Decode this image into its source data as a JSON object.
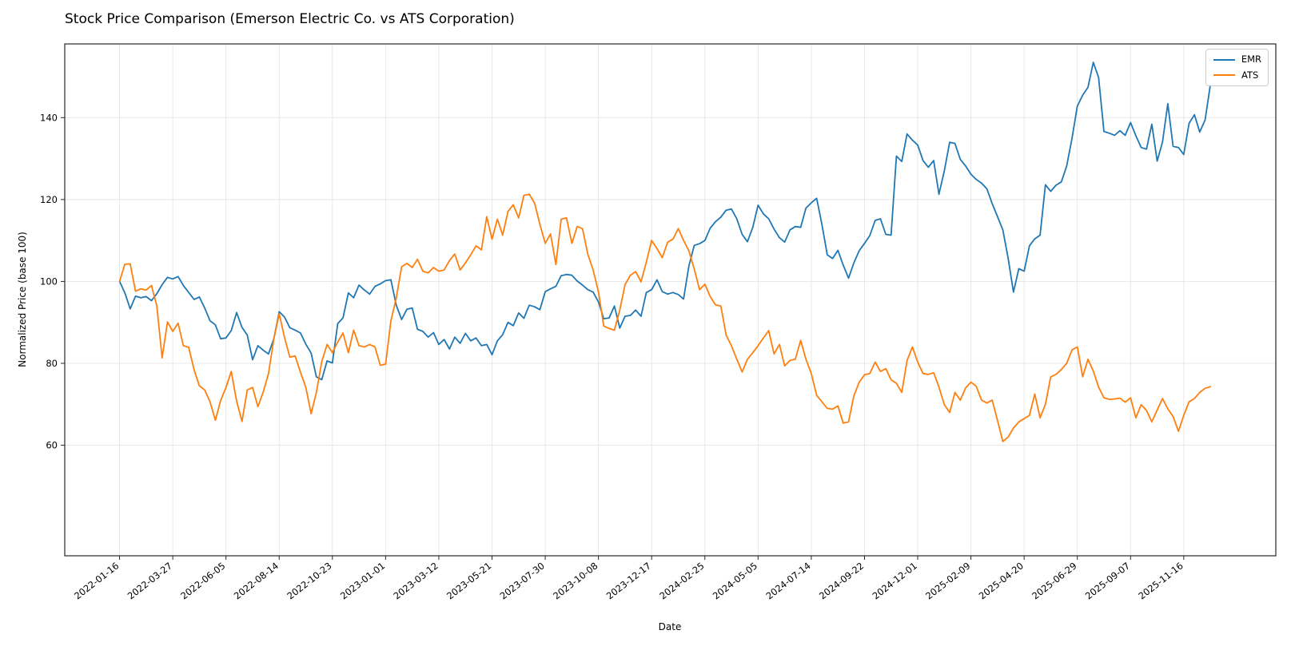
{
  "window_title": "Stock Price Comparison (Emerson Electric Co. vs ATS Corporation)",
  "chart_data": {
    "type": "line",
    "title": "Stock Price Comparison (Emerson Electric Co. vs ATS Corporation)",
    "xlabel": "Date",
    "ylabel": "Normalized Price (base 100)",
    "grid": true,
    "legend_position": "upper right",
    "background": "#ffffff",
    "grid_color": "#e5e5e5",
    "spine_color": "#262626",
    "tick_label_color": "#000000",
    "x_tick_rotation_deg": 38,
    "ylim": [
      33,
      158
    ],
    "y_ticks": [
      60,
      80,
      100,
      120,
      140
    ],
    "xlim_weeks": [
      -10.3,
      217.3
    ],
    "x_tick_weeks": [
      0,
      10,
      20,
      30,
      40,
      50,
      60,
      70,
      80,
      90,
      100,
      110,
      120,
      130,
      140,
      150,
      160,
      170,
      180,
      190,
      200
    ],
    "x_tick_labels": [
      "2022-01-16",
      "2022-03-27",
      "2022-06-05",
      "2022-08-14",
      "2022-10-23",
      "2023-01-01",
      "2023-03-12",
      "2023-05-21",
      "2023-07-30",
      "2023-10-08",
      "2023-12-17",
      "2024-02-25",
      "2024-05-05",
      "2024-07-14",
      "2024-09-22",
      "2024-12-01",
      "2025-02-09",
      "2025-04-20",
      "2025-06-29",
      "2025-09-07",
      "2025-11-16"
    ],
    "sampling": "weekly",
    "series": [
      {
        "name": "EMR",
        "color": "#1f77b4",
        "values": [
          100,
          97.2,
          93.3,
          96.4,
          96.0,
          96.3,
          95.3,
          97.0,
          99.2,
          101.0,
          100.6,
          101.2,
          99.0,
          97.3,
          95.6,
          96.2,
          93.5,
          90.4,
          89.4,
          86.0,
          86.2,
          88.0,
          92.4,
          88.8,
          86.9,
          80.9,
          84.3,
          83.2,
          82.3,
          86.0,
          92.6,
          91.3,
          88.7,
          88.1,
          87.4,
          84.7,
          82.5,
          76.7,
          76.0,
          80.6,
          80.1,
          89.7,
          91.1,
          97.2,
          96.0,
          99.1,
          97.9,
          96.9,
          98.8,
          99.4,
          100.2,
          100.4,
          94.2,
          90.7,
          93.2,
          93.5,
          88.3,
          87.8,
          86.4,
          87.5,
          84.6,
          85.8,
          83.5,
          86.4,
          84.9,
          87.3,
          85.5,
          86.2,
          84.3,
          84.6,
          82.1,
          85.5,
          87.0,
          90.0,
          89.2,
          92.3,
          91.0,
          94.2,
          93.8,
          93.1,
          97.5,
          98.2,
          98.8,
          101.4,
          101.7,
          101.5,
          100.1,
          99.1,
          98.0,
          97.4,
          95.0,
          90.9,
          91.1,
          94.0,
          88.6,
          91.5,
          91.7,
          93.0,
          91.5,
          97.3,
          98.0,
          100.4,
          97.5,
          96.9,
          97.3,
          96.8,
          95.7,
          103.8,
          108.8,
          109.2,
          110.0,
          113.0,
          114.6,
          115.7,
          117.4,
          117.7,
          115.3,
          111.5,
          109.7,
          113.2,
          118.6,
          116.5,
          115.3,
          112.8,
          110.7,
          109.6,
          112.6,
          113.4,
          113.2,
          117.9,
          119.2,
          120.3,
          113.9,
          106.5,
          105.6,
          107.6,
          104.0,
          100.8,
          104.5,
          107.5,
          109.3,
          111.2,
          114.9,
          115.3,
          111.5,
          111.3,
          130.6,
          129.3,
          136.0,
          134.5,
          133.3,
          129.5,
          127.9,
          129.5,
          121.3,
          127.0,
          134.0,
          133.7,
          129.8,
          128.2,
          126.2,
          124.9,
          124.0,
          122.6,
          119.0,
          115.8,
          112.6,
          105.6,
          97.4,
          103.1,
          102.5,
          108.7,
          110.4,
          111.3,
          123.6,
          122.0,
          123.5,
          124.3,
          128.2,
          135.0,
          142.8,
          145.5,
          147.4,
          153.5,
          149.8,
          136.6,
          136.2,
          135.7,
          136.8,
          135.7,
          138.8,
          135.6,
          132.7,
          132.3,
          138.4,
          129.4,
          134.0,
          143.4,
          133.0,
          132.7,
          131.0,
          138.6,
          140.7,
          136.5,
          139.4,
          148.0
        ]
      },
      {
        "name": "ATS",
        "color": "#ff7f0e",
        "values": [
          100,
          104.2,
          104.3,
          97.6,
          98.2,
          97.9,
          99.0,
          94.0,
          81.3,
          90.1,
          87.8,
          89.8,
          84.3,
          83.9,
          78.4,
          74.5,
          73.5,
          70.6,
          66.1,
          70.9,
          74.1,
          78.0,
          70.8,
          65.8,
          73.5,
          74.1,
          69.4,
          73.0,
          77.5,
          86.0,
          92.1,
          86.3,
          81.5,
          81.8,
          77.8,
          74.2,
          67.7,
          72.9,
          80.4,
          84.6,
          82.6,
          85.2,
          87.4,
          82.6,
          88.1,
          84.3,
          84.0,
          84.6,
          84.0,
          79.5,
          79.8,
          90.4,
          95.9,
          103.6,
          104.4,
          103.4,
          105.4,
          102.5,
          102.1,
          103.4,
          102.5,
          102.8,
          105.1,
          106.7,
          102.8,
          104.5,
          106.5,
          108.7,
          107.7,
          115.8,
          110.3,
          115.2,
          111.3,
          117.1,
          118.7,
          115.5,
          121.0,
          121.3,
          119.1,
          113.9,
          109.3,
          111.6,
          104.1,
          115.2,
          115.5,
          109.3,
          113.4,
          112.9,
          106.7,
          102.8,
          97.5,
          89.1,
          88.5,
          88.1,
          93.0,
          99.2,
          101.5,
          102.4,
          99.9,
          104.7,
          110.0,
          108.0,
          105.8,
          109.6,
          110.3,
          112.9,
          110.0,
          107.5,
          103.0,
          98.0,
          99.3,
          96.3,
          94.3,
          94.0,
          86.9,
          84.3,
          81.0,
          77.9,
          81.0,
          82.6,
          84.3,
          86.2,
          88.0,
          82.3,
          84.6,
          79.4,
          80.7,
          81.0,
          85.6,
          81.0,
          77.5,
          72.2,
          70.6,
          69.0,
          68.8,
          69.6,
          65.4,
          65.7,
          72.0,
          75.4,
          77.2,
          77.5,
          80.3,
          78.0,
          78.7,
          76.0,
          75.1,
          72.9,
          80.7,
          84.0,
          80.3,
          77.5,
          77.3,
          77.7,
          74.2,
          69.9,
          68.0,
          72.9,
          71.0,
          74.0,
          75.4,
          74.4,
          71.0,
          70.3,
          71.0,
          66.0,
          60.9,
          62.0,
          64.2,
          65.7,
          66.5,
          67.3,
          72.5,
          66.7,
          70.0,
          76.7,
          77.3,
          78.5,
          80.0,
          83.3,
          84.0,
          76.7,
          81.0,
          78.1,
          74.2,
          71.6,
          71.2,
          71.3,
          71.5,
          70.5,
          71.6,
          66.7,
          69.9,
          68.5,
          65.7,
          68.6,
          71.4,
          68.9,
          67.0,
          63.4,
          67.3,
          70.6,
          71.4,
          72.9,
          73.9,
          74.3
        ]
      }
    ]
  }
}
